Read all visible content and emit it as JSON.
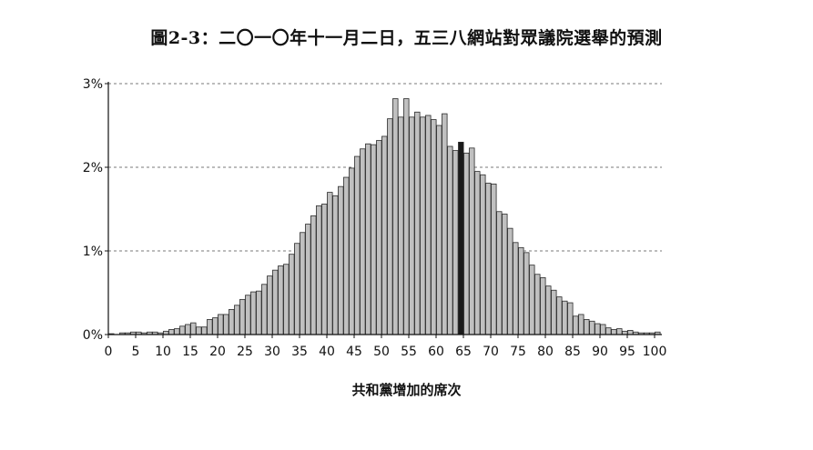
{
  "chart_data": {
    "type": "bar",
    "title": "圖2-3：二〇一〇年十一月二日，五三八網站對眾議院選舉的預測",
    "xlabel": "共和黨增加的席次",
    "ylabel": "",
    "xlim": [
      0,
      100
    ],
    "ylim": [
      0,
      3
    ],
    "x_ticks": [
      "0",
      "5",
      "10",
      "15",
      "20",
      "25",
      "30",
      "35",
      "40",
      "45",
      "50",
      "55",
      "60",
      "65",
      "70",
      "75",
      "80",
      "85",
      "90",
      "95",
      "100"
    ],
    "y_ticks": [
      "0%",
      "1%",
      "2%",
      "3%"
    ],
    "grid": "horizontal dashed",
    "highlight_x": 64,
    "bar_color": "#c0c0c0",
    "highlight_color": "#1a1a1a",
    "x": [
      0,
      1,
      2,
      3,
      4,
      5,
      6,
      7,
      8,
      9,
      10,
      11,
      12,
      13,
      14,
      15,
      16,
      17,
      18,
      19,
      20,
      21,
      22,
      23,
      24,
      25,
      26,
      27,
      28,
      29,
      30,
      31,
      32,
      33,
      34,
      35,
      36,
      37,
      38,
      39,
      40,
      41,
      42,
      43,
      44,
      45,
      46,
      47,
      48,
      49,
      50,
      51,
      52,
      53,
      54,
      55,
      56,
      57,
      58,
      59,
      60,
      61,
      62,
      63,
      64,
      65,
      66,
      67,
      68,
      69,
      70,
      71,
      72,
      73,
      74,
      75,
      76,
      77,
      78,
      79,
      80,
      81,
      82,
      83,
      84,
      85,
      86,
      87,
      88,
      89,
      90,
      91,
      92,
      93,
      94,
      95,
      96,
      97,
      98,
      99,
      100
    ],
    "values": [
      0.01,
      0.0,
      0.02,
      0.02,
      0.03,
      0.03,
      0.02,
      0.03,
      0.03,
      0.02,
      0.04,
      0.06,
      0.07,
      0.1,
      0.12,
      0.14,
      0.09,
      0.09,
      0.18,
      0.2,
      0.24,
      0.24,
      0.3,
      0.35,
      0.42,
      0.47,
      0.51,
      0.52,
      0.6,
      0.7,
      0.77,
      0.82,
      0.84,
      0.96,
      1.09,
      1.22,
      1.32,
      1.42,
      1.54,
      1.56,
      1.7,
      1.66,
      1.77,
      1.88,
      1.99,
      2.13,
      2.22,
      2.28,
      2.27,
      2.32,
      2.37,
      2.58,
      2.82,
      2.6,
      2.82,
      2.6,
      2.66,
      2.6,
      2.62,
      2.57,
      2.5,
      2.64,
      2.25,
      2.2,
      2.3,
      2.17,
      2.23,
      1.95,
      1.91,
      1.81,
      1.8,
      1.47,
      1.44,
      1.27,
      1.1,
      1.04,
      0.98,
      0.83,
      0.72,
      0.68,
      0.58,
      0.53,
      0.45,
      0.4,
      0.38,
      0.22,
      0.24,
      0.18,
      0.16,
      0.13,
      0.12,
      0.08,
      0.06,
      0.07,
      0.04,
      0.05,
      0.03,
      0.02,
      0.02,
      0.02,
      0.03
    ]
  }
}
